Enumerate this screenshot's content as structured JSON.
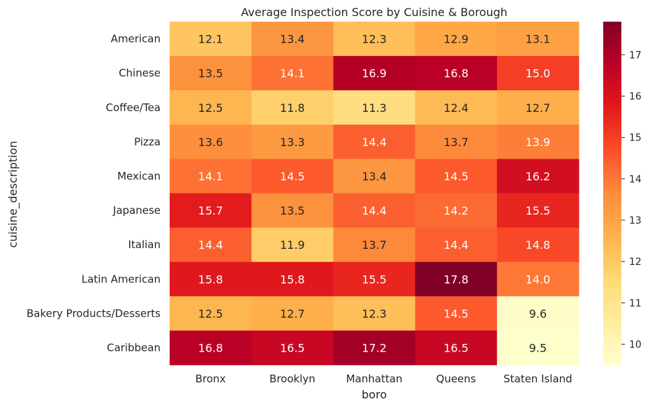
{
  "chart_data": {
    "type": "heatmap",
    "title": "Average Inspection Score by Cuisine & Borough",
    "xlabel": "boro",
    "ylabel": "cuisine_description",
    "x_categories": [
      "Bronx",
      "Brooklyn",
      "Manhattan",
      "Queens",
      "Staten Island"
    ],
    "y_categories": [
      "American",
      "Chinese",
      "Coffee/Tea",
      "Pizza",
      "Mexican",
      "Japanese",
      "Italian",
      "Latin American",
      "Bakery Products/Desserts",
      "Caribbean"
    ],
    "values": [
      [
        12.1,
        13.4,
        12.3,
        12.9,
        13.1
      ],
      [
        13.5,
        14.1,
        16.9,
        16.8,
        15.0
      ],
      [
        12.5,
        11.8,
        11.3,
        12.4,
        12.7
      ],
      [
        13.6,
        13.3,
        14.4,
        13.7,
        13.9
      ],
      [
        14.1,
        14.5,
        13.4,
        14.5,
        16.2
      ],
      [
        15.7,
        13.5,
        14.4,
        14.2,
        15.5
      ],
      [
        14.4,
        11.9,
        13.7,
        14.4,
        14.8
      ],
      [
        15.8,
        15.8,
        15.5,
        17.8,
        14.0
      ],
      [
        12.5,
        12.7,
        12.3,
        14.5,
        9.6
      ],
      [
        16.8,
        16.5,
        17.2,
        16.5,
        9.5
      ]
    ],
    "colormap": "YlOrRd",
    "colorbar": {
      "range": [
        9.5,
        17.8
      ],
      "ticks": [
        10,
        11,
        12,
        13,
        14,
        15,
        16,
        17
      ]
    },
    "annotation_text_colors": {
      "light": "#ffffff",
      "dark": "#262626"
    }
  }
}
